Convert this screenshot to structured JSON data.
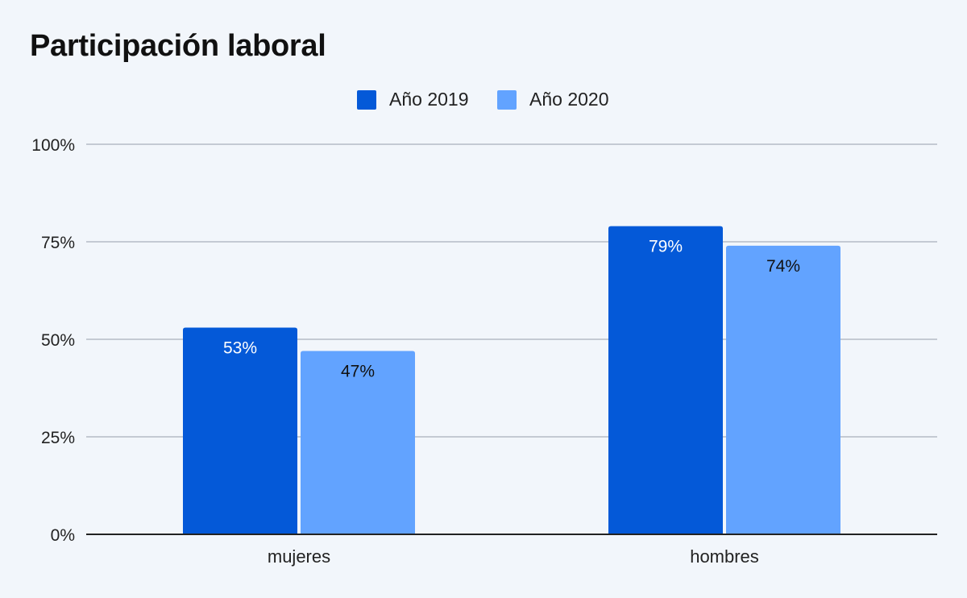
{
  "title": "Participación laboral",
  "colors": {
    "series_2019": "#0459d8",
    "series_2020": "#62a3ff",
    "grid": "#b5bcc6",
    "axis": "#222222",
    "background": "#f2f6fb"
  },
  "chart_data": {
    "type": "bar",
    "title": "Participación laboral",
    "xlabel": "",
    "ylabel": "",
    "categories": [
      "mujeres",
      "hombres"
    ],
    "series": [
      {
        "name": "Año 2019",
        "values": [
          53,
          79
        ],
        "labels": [
          "53%",
          "79%"
        ],
        "color": "#0459d8",
        "label_color": "#ffffff"
      },
      {
        "name": "Año 2020",
        "values": [
          47,
          74
        ],
        "labels": [
          "47%",
          "74%"
        ],
        "color": "#62a3ff",
        "label_color": "#111111"
      }
    ],
    "ylim": [
      0,
      100
    ],
    "yticks": [
      0,
      25,
      50,
      75,
      100
    ],
    "ytick_labels": [
      "0%",
      "25%",
      "50%",
      "75%",
      "100%"
    ],
    "grid": true,
    "legend": "top-center"
  }
}
